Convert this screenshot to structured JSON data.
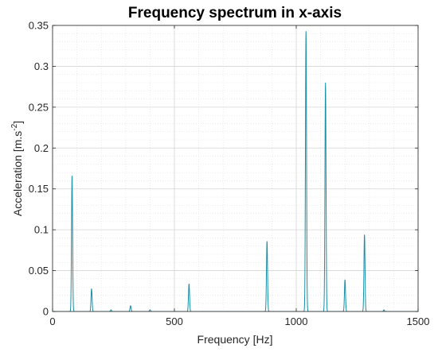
{
  "chart_data": {
    "type": "line",
    "title": "Frequency spectrum in x-axis",
    "xlabel": "Frequency [Hz]",
    "ylabel": "Acceleration [m.s",
    "ylabel_superscript": "-2",
    "ylabel_suffix": "]",
    "xlim": [
      0,
      1500
    ],
    "ylim": [
      0,
      0.35
    ],
    "x_ticks": [
      0,
      500,
      1000,
      1500
    ],
    "x_tick_labels": [
      "0",
      "500",
      "1000",
      "1500"
    ],
    "y_ticks": [
      0,
      0.05,
      0.1,
      0.15,
      0.2,
      0.25,
      0.3,
      0.35
    ],
    "y_tick_labels": [
      "0",
      "0.05",
      "0.1",
      "0.15",
      "0.2",
      "0.25",
      "0.3",
      "0.35"
    ],
    "grid": true,
    "minor_grid": true,
    "series": [
      {
        "color": "#1b8ea6",
        "peaks": [
          {
            "x": 80,
            "y": 0.166
          },
          {
            "x": 160,
            "y": 0.028
          },
          {
            "x": 240,
            "y": 0.002
          },
          {
            "x": 320,
            "y": 0.007
          },
          {
            "x": 400,
            "y": 0.002
          },
          {
            "x": 560,
            "y": 0.034
          },
          {
            "x": 880,
            "y": 0.086
          },
          {
            "x": 1040,
            "y": 0.343
          },
          {
            "x": 1120,
            "y": 0.28
          },
          {
            "x": 1200,
            "y": 0.039
          },
          {
            "x": 1280,
            "y": 0.094
          },
          {
            "x": 1360,
            "y": 0.002
          }
        ]
      }
    ]
  }
}
